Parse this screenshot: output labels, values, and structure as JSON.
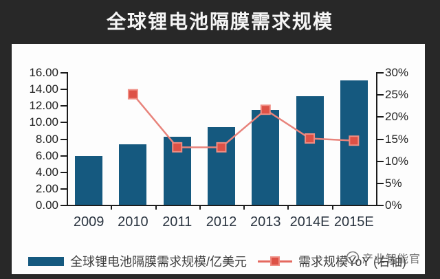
{
  "title": "全球锂电池隔膜需求规模",
  "watermark": "产业智能官",
  "colors": {
    "background": "#282828",
    "panel": "#fdfdfd",
    "bar": "#15597f",
    "line": "#e8837b",
    "marker_fill": "#dd5146",
    "marker_border": "#ef8d83",
    "axis": "#1c1c1c",
    "title_text": "#f5f5f5",
    "watermark_text": "#5f5f5f"
  },
  "legend": [
    {
      "type": "bar",
      "label": "全球锂电池隔膜需求规模/亿美元"
    },
    {
      "type": "line",
      "label": "需求规模YoY (右轴)"
    }
  ],
  "chart_data": {
    "type": "bar",
    "subtype": "bar+line combo, dual axis",
    "title": "全球锂电池隔膜需求规模",
    "categories": [
      "2009",
      "2010",
      "2011",
      "2012",
      "2013",
      "2014E",
      "2015E"
    ],
    "series": [
      {
        "name": "全球锂电池隔膜需求规模/亿美元",
        "type": "bar",
        "axis": "left",
        "values": [
          5.9,
          7.3,
          8.2,
          9.4,
          11.4,
          13.1,
          15.0
        ]
      },
      {
        "name": "需求规模YoY (右轴)",
        "type": "line",
        "axis": "right",
        "values": [
          null,
          25,
          13,
          13,
          21.5,
          15,
          14.5
        ]
      }
    ],
    "left_axis": {
      "min": 0,
      "max": 16,
      "step": 2,
      "labels": [
        "16.00",
        "14.00",
        "12.00",
        "10.00",
        "8.00",
        "6.00",
        "4.00",
        "2.00",
        "0.00"
      ]
    },
    "right_axis": {
      "min": 0,
      "max": 30,
      "step": 5,
      "labels": [
        "30%",
        "25%",
        "20%",
        "15%",
        "10%",
        "5%",
        "0%"
      ]
    },
    "grid": false,
    "legend_position": "bottom"
  }
}
